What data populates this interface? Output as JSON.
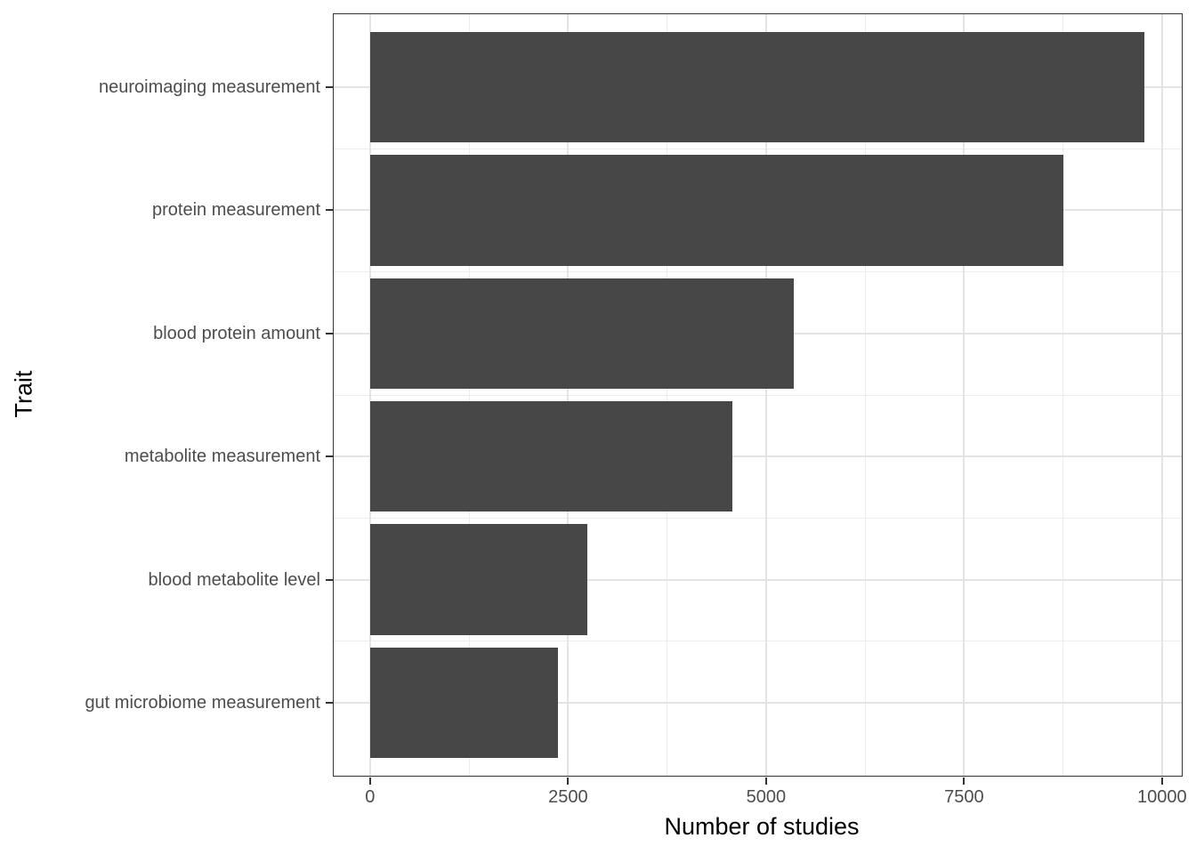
{
  "chart_data": {
    "type": "bar",
    "orientation": "horizontal",
    "title": "",
    "xlabel": "Number of studies",
    "ylabel": "Trait",
    "categories": [
      "neuroimaging measurement",
      "protein measurement",
      "blood protein amount",
      "metabolite measurement",
      "blood metabolite level",
      "gut microbiome measurement"
    ],
    "values": [
      9780,
      8760,
      5350,
      4570,
      2740,
      2370
    ],
    "x_ticks": [
      0,
      2500,
      5000,
      7500,
      10000
    ],
    "x_tick_labels": [
      "0",
      "2500",
      "5000",
      "7500",
      "10000"
    ],
    "x_minor_ticks": [
      1250,
      3750,
      6250,
      8750
    ],
    "xlim": [
      -470,
      10260
    ],
    "bar_width_fraction": 0.9,
    "grid": {
      "show": true,
      "major": true,
      "minor": true
    },
    "legend_position": "none",
    "colors": {
      "background": "#FFFFFF",
      "bar_fill": "#474747",
      "grid_major": "#E4E4E4",
      "grid_minor": "#EDEDED",
      "panel_border": "#333333",
      "axis_text": "#4D4D4D",
      "axis_title": "#000000"
    }
  }
}
